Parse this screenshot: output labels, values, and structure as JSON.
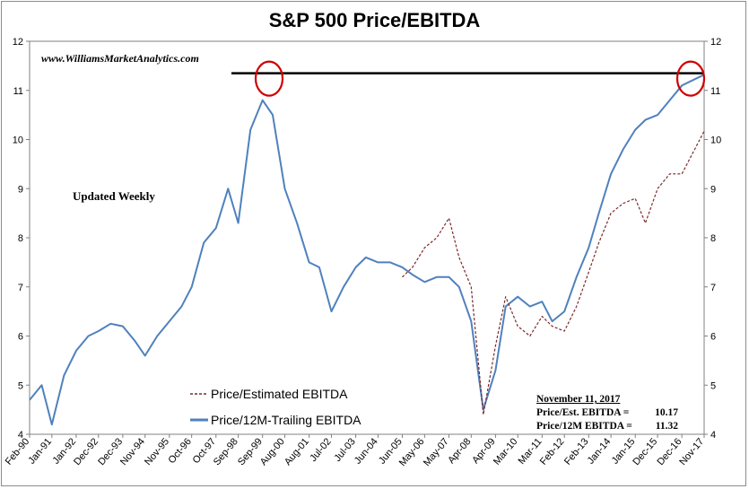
{
  "chart_data": {
    "type": "line",
    "title": "S&P 500 Price/EBITDA",
    "source_note": "www.WilliamsMarketAnalytics.com",
    "annotation": "Updated Weekly",
    "ylim": [
      4,
      12
    ],
    "yticks": [
      "4",
      "5",
      "6",
      "7",
      "8",
      "9",
      "10",
      "11",
      "12"
    ],
    "xtick_labels": [
      "Feb-90",
      "Jan-91",
      "Jan-92",
      "Dec-92",
      "Dec-93",
      "Nov-94",
      "Nov-95",
      "Oct-96",
      "Oct-97",
      "Sep-98",
      "Sep-99",
      "Aug-00",
      "Aug-01",
      "Jul-02",
      "Jul-03",
      "Jun-04",
      "Jun-05",
      "May-06",
      "May-07",
      "Apr-08",
      "Apr-09",
      "Mar-10",
      "Mar-11",
      "Feb-12",
      "Feb-13",
      "Jan-14",
      "Jan-15",
      "Dec-15",
      "Dec-16",
      "Nov-17"
    ],
    "reference_level": 11.35,
    "legend": {
      "position": "bottom-left"
    },
    "series": [
      {
        "name": "Price/12M-Trailing EBITDA",
        "color": "#4f81bd",
        "style": "solid",
        "points": [
          [
            "Feb-90",
            4.7
          ],
          [
            "Aug-90",
            5.0
          ],
          [
            "Jan-91",
            4.2
          ],
          [
            "Jul-91",
            5.2
          ],
          [
            "Jan-92",
            5.7
          ],
          [
            "Jul-92",
            6.0
          ],
          [
            "Dec-92",
            6.1
          ],
          [
            "Jun-93",
            6.25
          ],
          [
            "Dec-93",
            6.2
          ],
          [
            "Jun-94",
            5.9
          ],
          [
            "Nov-94",
            5.6
          ],
          [
            "May-95",
            6.0
          ],
          [
            "Nov-95",
            6.3
          ],
          [
            "May-96",
            6.6
          ],
          [
            "Oct-96",
            7.0
          ],
          [
            "Apr-97",
            7.9
          ],
          [
            "Oct-97",
            8.2
          ],
          [
            "Apr-98",
            9.0
          ],
          [
            "Sep-98",
            8.3
          ],
          [
            "Mar-99",
            10.2
          ],
          [
            "Sep-99",
            10.8
          ],
          [
            "Feb-00",
            10.5
          ],
          [
            "Aug-00",
            9.0
          ],
          [
            "Feb-01",
            8.3
          ],
          [
            "Aug-01",
            7.5
          ],
          [
            "Jan-02",
            7.4
          ],
          [
            "Jul-02",
            6.5
          ],
          [
            "Jan-03",
            7.0
          ],
          [
            "Jul-03",
            7.4
          ],
          [
            "Dec-03",
            7.6
          ],
          [
            "Jun-04",
            7.5
          ],
          [
            "Dec-04",
            7.5
          ],
          [
            "Jun-05",
            7.4
          ],
          [
            "Nov-05",
            7.25
          ],
          [
            "May-06",
            7.1
          ],
          [
            "Nov-06",
            7.2
          ],
          [
            "May-07",
            7.2
          ],
          [
            "Oct-07",
            7.0
          ],
          [
            "Apr-08",
            6.3
          ],
          [
            "Oct-08",
            4.5
          ],
          [
            "Apr-09",
            5.3
          ],
          [
            "Sep-09",
            6.6
          ],
          [
            "Mar-10",
            6.8
          ],
          [
            "Sep-10",
            6.6
          ],
          [
            "Mar-11",
            6.7
          ],
          [
            "Aug-11",
            6.3
          ],
          [
            "Feb-12",
            6.5
          ],
          [
            "Aug-12",
            7.2
          ],
          [
            "Feb-13",
            7.8
          ],
          [
            "Jul-13",
            8.5
          ],
          [
            "Jan-14",
            9.3
          ],
          [
            "Jul-14",
            9.8
          ],
          [
            "Jan-15",
            10.2
          ],
          [
            "Jun-15",
            10.4
          ],
          [
            "Dec-15",
            10.5
          ],
          [
            "Jun-16",
            10.8
          ],
          [
            "Dec-16",
            11.1
          ],
          [
            "Nov-17",
            11.32
          ]
        ]
      },
      {
        "name": "Price/Estimated EBITDA",
        "color": "#7b2a2a",
        "style": "dashed",
        "points": [
          [
            "Jun-05",
            7.2
          ],
          [
            "Nov-05",
            7.4
          ],
          [
            "May-06",
            7.8
          ],
          [
            "Nov-06",
            8.0
          ],
          [
            "May-07",
            8.4
          ],
          [
            "Oct-07",
            7.6
          ],
          [
            "Apr-08",
            7.0
          ],
          [
            "Oct-08",
            4.4
          ],
          [
            "Apr-09",
            5.8
          ],
          [
            "Sep-09",
            6.8
          ],
          [
            "Mar-10",
            6.2
          ],
          [
            "Sep-10",
            6.0
          ],
          [
            "Mar-11",
            6.4
          ],
          [
            "Aug-11",
            6.2
          ],
          [
            "Feb-12",
            6.1
          ],
          [
            "Aug-12",
            6.6
          ],
          [
            "Feb-13",
            7.3
          ],
          [
            "Jul-13",
            7.9
          ],
          [
            "Jan-14",
            8.5
          ],
          [
            "Jul-14",
            8.7
          ],
          [
            "Jan-15",
            8.8
          ],
          [
            "Jun-15",
            8.3
          ],
          [
            "Dec-15",
            9.0
          ],
          [
            "Jun-16",
            9.3
          ],
          [
            "Dec-16",
            9.3
          ],
          [
            "Nov-17",
            10.17
          ]
        ]
      }
    ],
    "stats_box": {
      "date": "November 11, 2017",
      "rows": [
        {
          "label": "Price/Est. EBITDA =",
          "value": "10.17"
        },
        {
          "label": "Price/12M EBITDA =",
          "value": "11.32"
        }
      ]
    },
    "highlight_circles_color": "#d00000"
  }
}
